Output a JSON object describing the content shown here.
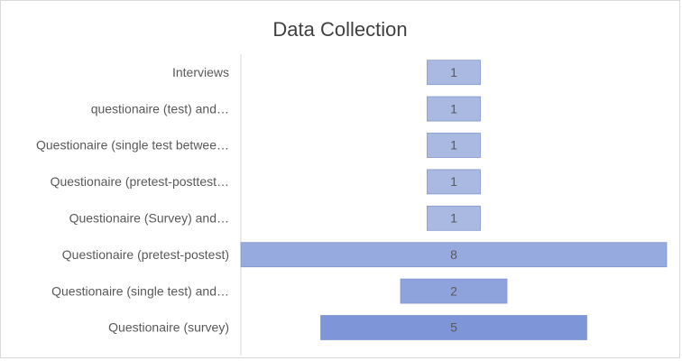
{
  "chart_data": {
    "type": "funnel",
    "title": "Data Collection",
    "categories": [
      "Interviews",
      "questionaire (test) and…",
      "Questionaire (single test betwee…",
      "Questionaire (pretest-posttest…",
      "Questionaire (Survey) and…",
      "Questionaire (pretest-postest)",
      "Questionaire (single test) and…",
      "Questionaire (survey)"
    ],
    "values": [
      1,
      1,
      1,
      1,
      1,
      8,
      2,
      5
    ],
    "colors": [
      "#a9b9e2",
      "#a9b9e2",
      "#a9b9e2",
      "#a9b9e2",
      "#a9b9e2",
      "#97aae0",
      "#8ea2dc",
      "#7e96d8"
    ]
  }
}
